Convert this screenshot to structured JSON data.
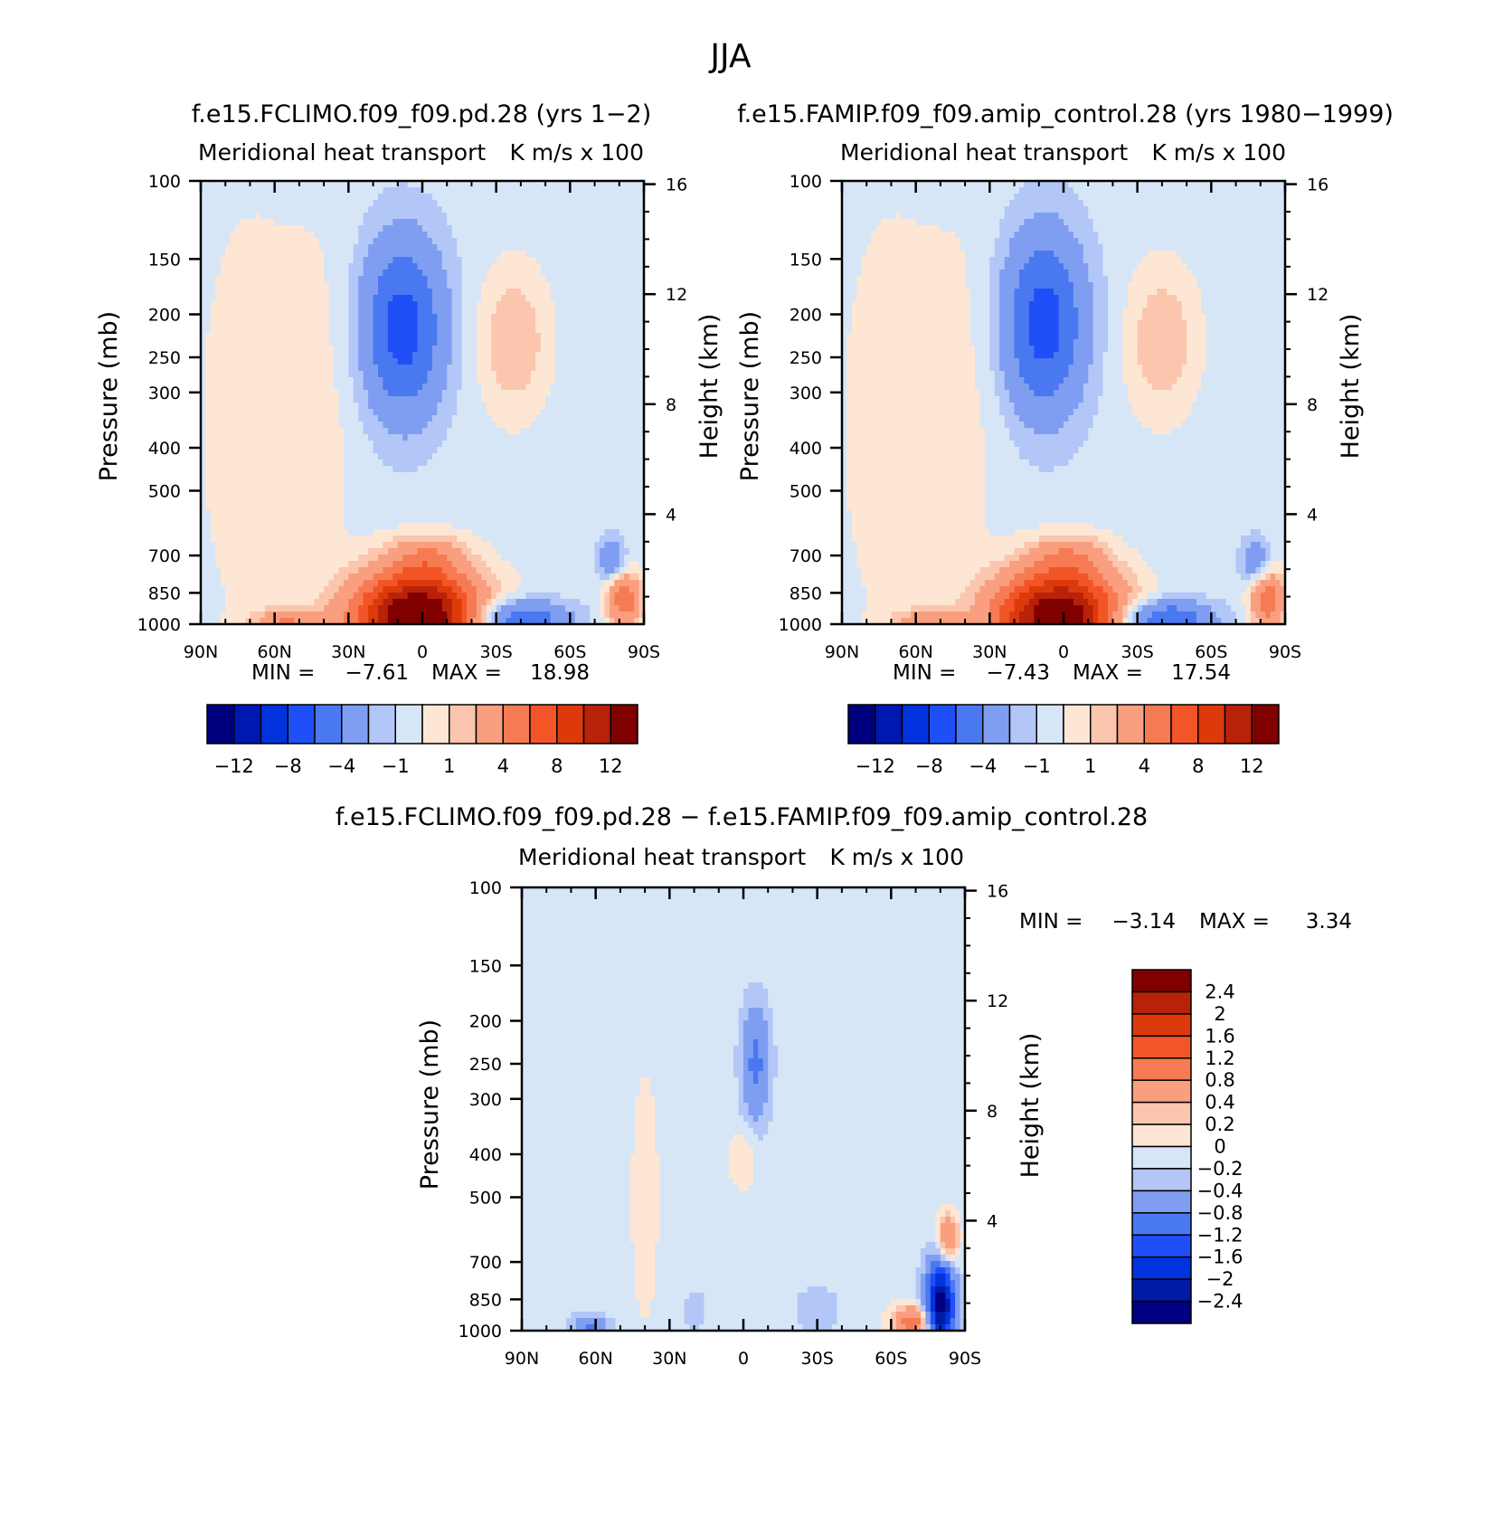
{
  "figure": {
    "title": "JJA"
  },
  "colors": {
    "panel_scale": [
      "#00007f",
      "#0018b0",
      "#0033dd",
      "#1f4ff7",
      "#4a78f0",
      "#7f9ef2",
      "#b2c6f7",
      "#d6e6f7",
      "#fde6d4",
      "#fbc6ad",
      "#f99f7f",
      "#f77b52",
      "#f25527",
      "#dd3a0c",
      "#b82208",
      "#800000"
    ],
    "diff_scale": [
      "#000080",
      "#001aa6",
      "#0033dd",
      "#1f4ff7",
      "#4a78f0",
      "#7f9ef2",
      "#b2c6f7",
      "#d6e6f7",
      "#fde6d4",
      "#fbc6ad",
      "#f99f7f",
      "#f77b52",
      "#f25527",
      "#dd3a0c",
      "#b82208",
      "#800000"
    ],
    "white": "#ffffff"
  },
  "chart_data": [
    {
      "type": "heatmap",
      "id": "panel1",
      "title": "f.e15.FCLIMO.f09_f09.pd.28 (yrs 1-2)",
      "left_subtitle": "Meridional heat transport",
      "right_subtitle": "K m/s x 100",
      "ylabel": "Pressure (mb)",
      "right_ylabel": "Height (km)",
      "xlim": [
        90,
        -90
      ],
      "x_tick_labels": [
        "90N",
        "60N",
        "30N",
        "0",
        "30S",
        "60S",
        "90S"
      ],
      "x_tick_values": [
        90,
        60,
        30,
        0,
        -30,
        -60,
        -90
      ],
      "y_tick_labels": [
        "100",
        "150",
        "200",
        "250",
        "300",
        "400",
        "500",
        "700",
        "850",
        "1000"
      ],
      "y_tick_values": [
        100,
        150,
        200,
        250,
        300,
        400,
        500,
        700,
        850,
        1000
      ],
      "height_tick_labels": [
        "16",
        "12",
        "8",
        "4"
      ],
      "height_tick_values": [
        16,
        12,
        8,
        4
      ],
      "min_label": "MIN =",
      "min_value": "-7.61",
      "max_label": "MAX =",
      "max_value": "18.98",
      "colorbar": {
        "levels": [
          -14,
          -12,
          -10,
          -8,
          -6,
          -4,
          -2,
          -1,
          0,
          1,
          2,
          4,
          6,
          8,
          10,
          12,
          14
        ],
        "tick_labels": [
          "-12",
          "-8",
          "-4",
          "-1",
          "1",
          "4",
          "8",
          "12"
        ],
        "tick_values": [
          -12,
          -8,
          -4,
          -1,
          1,
          4,
          8,
          12
        ]
      },
      "features": [
        {
          "lat": 2,
          "p": 960,
          "amp": 16.0,
          "wlat": 18,
          "wp": 170
        },
        {
          "lat": -2,
          "p": 700,
          "amp": 3.0,
          "wlat": 11,
          "wp": 60
        },
        {
          "lat": 8,
          "p": 215,
          "amp": -6.5,
          "wlat": 12,
          "wp": 85
        },
        {
          "lat": -39,
          "p": 975,
          "amp": -6.0,
          "wlat": 14,
          "wp": 70
        },
        {
          "lat": 55,
          "p": 985,
          "amp": 4.0,
          "wlat": 10,
          "wp": 45
        },
        {
          "lat": -37,
          "p": 230,
          "amp": 2.5,
          "wlat": 10,
          "wp": 70
        },
        {
          "lat": -82,
          "p": 880,
          "amp": 6.0,
          "wlat": 5,
          "wp": 100
        },
        {
          "lat": -77,
          "p": 720,
          "amp": -3.5,
          "wlat": 4,
          "wp": 60
        },
        {
          "lat": 70,
          "p": 350,
          "amp": 1.0,
          "wlat": 16,
          "wp": 500
        },
        {
          "lat": 40,
          "p": 300,
          "amp": 0.8,
          "wlat": 12,
          "wp": 300
        }
      ],
      "base_value": -0.5,
      "masked": [
        {
          "from_lat": -60,
          "to_lat": -90,
          "p_from": 990,
          "p_to": 1000
        }
      ]
    },
    {
      "type": "heatmap",
      "id": "panel2",
      "title": "f.e15.FAMIP.f09_f09.amip_control.28 (yrs 1980-1999)",
      "left_subtitle": "Meridional heat transport",
      "right_subtitle": "K m/s x 100",
      "ylabel": "Pressure (mb)",
      "right_ylabel": "Height (km)",
      "xlim": [
        90,
        -90
      ],
      "x_tick_labels": [
        "90N",
        "60N",
        "30N",
        "0",
        "30S",
        "60S",
        "90S"
      ],
      "x_tick_values": [
        90,
        60,
        30,
        0,
        -30,
        -60,
        -90
      ],
      "y_tick_labels": [
        "100",
        "150",
        "200",
        "250",
        "300",
        "400",
        "500",
        "700",
        "850",
        "1000"
      ],
      "y_tick_values": [
        100,
        150,
        200,
        250,
        300,
        400,
        500,
        700,
        850,
        1000
      ],
      "height_tick_labels": [
        "16",
        "12",
        "8",
        "4"
      ],
      "height_tick_values": [
        16,
        12,
        8,
        4
      ],
      "min_label": "MIN =",
      "min_value": "-7.43",
      "max_label": "MAX =",
      "max_value": "17.54",
      "colorbar": {
        "levels": [
          -14,
          -12,
          -10,
          -8,
          -6,
          -4,
          -2,
          -1,
          0,
          1,
          2,
          4,
          6,
          8,
          10,
          12,
          14
        ],
        "tick_labels": [
          "-12",
          "-8",
          "-4",
          "-1",
          "1",
          "4",
          "8",
          "12"
        ],
        "tick_values": [
          -12,
          -8,
          -4,
          -1,
          1,
          4,
          8,
          12
        ]
      },
      "features": [
        {
          "lat": 2,
          "p": 960,
          "amp": 15.0,
          "wlat": 18,
          "wp": 170
        },
        {
          "lat": -2,
          "p": 700,
          "amp": 3.0,
          "wlat": 11,
          "wp": 60
        },
        {
          "lat": 8,
          "p": 210,
          "amp": -6.5,
          "wlat": 12,
          "wp": 85
        },
        {
          "lat": -40,
          "p": 975,
          "amp": -6.0,
          "wlat": 14,
          "wp": 70
        },
        {
          "lat": 55,
          "p": 985,
          "amp": 3.5,
          "wlat": 10,
          "wp": 45
        },
        {
          "lat": -40,
          "p": 230,
          "amp": 2.5,
          "wlat": 10,
          "wp": 70
        },
        {
          "lat": -83,
          "p": 880,
          "amp": 6.0,
          "wlat": 5,
          "wp": 100
        },
        {
          "lat": -78,
          "p": 720,
          "amp": -3.5,
          "wlat": 4,
          "wp": 60
        },
        {
          "lat": 70,
          "p": 350,
          "amp": 1.0,
          "wlat": 16,
          "wp": 500
        },
        {
          "lat": 40,
          "p": 300,
          "amp": 0.8,
          "wlat": 12,
          "wp": 300
        }
      ],
      "base_value": -0.5,
      "masked": [
        {
          "from_lat": -60,
          "to_lat": -90,
          "p_from": 990,
          "p_to": 1000
        }
      ]
    },
    {
      "type": "heatmap",
      "id": "panel3",
      "title": "f.e15.FCLIMO.f09_f09.pd.28 - f.e15.FAMIP.f09_f09.amip_control.28",
      "left_subtitle": "Meridional heat transport",
      "right_subtitle": "K m/s x 100",
      "ylabel": "Pressure (mb)",
      "right_ylabel": "Height (km)",
      "xlim": [
        90,
        -90
      ],
      "x_tick_labels": [
        "90N",
        "60N",
        "30N",
        "0",
        "30S",
        "60S",
        "90S"
      ],
      "x_tick_values": [
        90,
        60,
        30,
        0,
        -30,
        -60,
        -90
      ],
      "y_tick_labels": [
        "100",
        "150",
        "200",
        "250",
        "300",
        "400",
        "500",
        "700",
        "850",
        "1000"
      ],
      "y_tick_values": [
        100,
        150,
        200,
        250,
        300,
        400,
        500,
        700,
        850,
        1000
      ],
      "height_tick_labels": [
        "16",
        "12",
        "8",
        "4"
      ],
      "height_tick_values": [
        16,
        12,
        8,
        4
      ],
      "min_label": "MIN =",
      "min_value": "-3.14",
      "max_label": "MAX =",
      "max_value": "3.34",
      "colorbar": {
        "levels": [
          -3,
          -2.4,
          -2,
          -1.6,
          -1.2,
          -0.8,
          -0.4,
          -0.2,
          0,
          0.2,
          0.4,
          0.8,
          1.2,
          1.6,
          2,
          2.4,
          3
        ],
        "tick_labels": [
          "2.4",
          "2",
          "1.6",
          "1.2",
          "0.8",
          "0.4",
          "0.2",
          "0",
          "-0.2",
          "-0.4",
          "-0.8",
          "-1.2",
          "-1.6",
          "-2",
          "-2.4"
        ],
        "tick_values": [
          2.4,
          2,
          1.6,
          1.2,
          0.8,
          0.4,
          0.2,
          0,
          -0.2,
          -0.4,
          -0.8,
          -1.2,
          -1.6,
          -2,
          -2.4
        ]
      },
      "features": [
        {
          "lat": -80,
          "p": 880,
          "amp": -2.6,
          "wlat": 4,
          "wp": 150
        },
        {
          "lat": -69,
          "p": 960,
          "amp": 1.2,
          "wlat": 6,
          "wp": 60
        },
        {
          "lat": -83,
          "p": 620,
          "amp": 1.0,
          "wlat": 3,
          "wp": 60
        },
        {
          "lat": -5,
          "p": 250,
          "amp": -0.8,
          "wlat": 4,
          "wp": 60
        },
        {
          "lat": 0,
          "p": 410,
          "amp": 0.3,
          "wlat": 4,
          "wp": 50
        },
        {
          "lat": 62,
          "p": 990,
          "amp": -0.8,
          "wlat": 5,
          "wp": 50
        },
        {
          "lat": 40,
          "p": 500,
          "amp": 0.15,
          "wlat": 6,
          "wp": 500
        },
        {
          "lat": 20,
          "p": 900,
          "amp": -0.2,
          "wlat": 4,
          "wp": 80
        },
        {
          "lat": -30,
          "p": 900,
          "amp": -0.3,
          "wlat": 6,
          "wp": 80
        }
      ],
      "base_value": -0.1,
      "masked": [
        {
          "from_lat": -66,
          "to_lat": -88,
          "p_from": 990,
          "p_to": 1000
        }
      ]
    }
  ]
}
